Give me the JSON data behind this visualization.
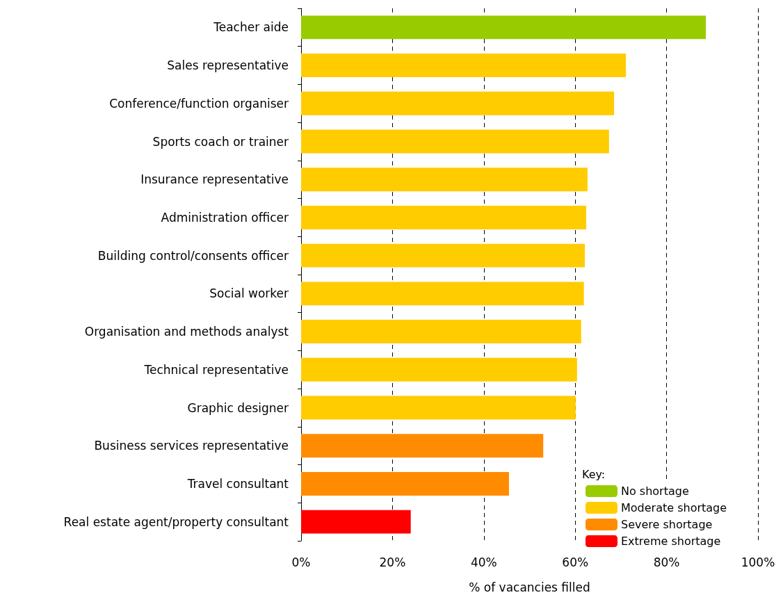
{
  "chart_data": {
    "type": "bar",
    "orientation": "horizontal",
    "stacked": true,
    "xlabel": "% of vacancies filled",
    "legend_title": "Key:",
    "legend": "bottom right",
    "categories": [
      "Teacher aide",
      "Sales representative",
      "Conference/function organiser",
      "Sports coach or trainer",
      "Insurance representative",
      "Administration officer",
      "Building control/consents officer",
      "Social worker",
      "Organisation and methods analyst",
      "Technical representative",
      "Graphic designer",
      "Business services representative",
      "Travel consultant",
      "Real estate agent/property consultant"
    ],
    "series": [
      {
        "name": "No shortage",
        "color": "#99cc00",
        "values": [
          88.6,
          null,
          null,
          null,
          null,
          null,
          null,
          null,
          null,
          null,
          null,
          null,
          null,
          null
        ]
      },
      {
        "name": "Moderate shortage",
        "color": "#ffcc00",
        "values": [
          null,
          71.1,
          68.5,
          67.4,
          62.7,
          62.4,
          62.1,
          61.9,
          61.3,
          60.4,
          60.1,
          null,
          null,
          null
        ]
      },
      {
        "name": "Severe shortage",
        "color": "#ff8c00",
        "values": [
          null,
          null,
          null,
          null,
          null,
          null,
          null,
          null,
          null,
          null,
          null,
          53.0,
          45.5,
          null
        ]
      },
      {
        "name": "Extreme shortage",
        "color": "#ff0000",
        "values": [
          null,
          null,
          null,
          null,
          null,
          null,
          null,
          null,
          null,
          null,
          null,
          null,
          null,
          24.0
        ]
      }
    ],
    "xlim": [
      0,
      100
    ],
    "xticks": [
      {
        "value": 0,
        "label": "0%"
      },
      {
        "value": 20,
        "label": "20%"
      },
      {
        "value": 40,
        "label": "40%"
      },
      {
        "value": 60,
        "label": "60%"
      },
      {
        "value": 80,
        "label": "80%"
      },
      {
        "value": 100,
        "label": "100%"
      }
    ],
    "grid": "x"
  }
}
